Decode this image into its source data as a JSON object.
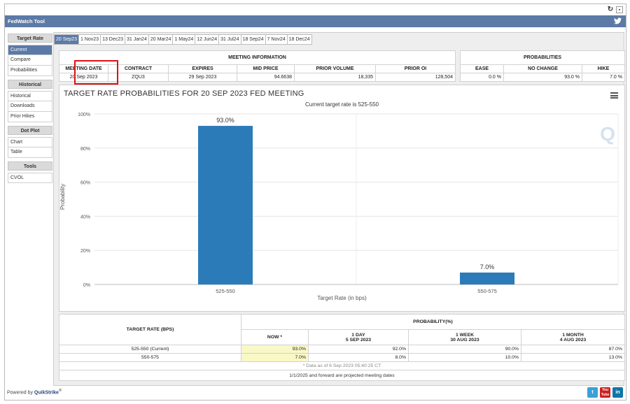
{
  "app": {
    "title": "FedWatch Tool"
  },
  "sidebar": {
    "groups": [
      {
        "label": "Target Rate",
        "items": [
          "Current",
          "Compare",
          "Probabilities"
        ]
      },
      {
        "label": "Historical",
        "items": [
          "Historical",
          "Downloads",
          "Prior Hikes"
        ]
      },
      {
        "label": "Dot Plot",
        "items": [
          "Chart",
          "Table"
        ]
      },
      {
        "label": "Tools",
        "items": [
          "CVOL"
        ]
      }
    ],
    "active": "Current"
  },
  "tabs": [
    "20 Sep23",
    "1 Nov23",
    "13 Dec23",
    "31 Jan24",
    "20 Mar24",
    "1 May24",
    "12 Jun24",
    "31 Jul24",
    "18 Sep24",
    "7 Nov24",
    "18 Dec24"
  ],
  "meeting": {
    "header": "MEETING INFORMATION",
    "columns": [
      "MEETING DATE",
      "CONTRACT",
      "EXPIRES",
      "MID PRICE",
      "PRIOR VOLUME",
      "PRIOR OI"
    ],
    "values": [
      "20 Sep 2023",
      "ZQU3",
      "29 Sep 2023",
      "94.6638",
      "18,335",
      "128,504"
    ]
  },
  "probabilities": {
    "header": "PROBABILITIES",
    "columns": [
      "EASE",
      "NO CHANGE",
      "HIKE"
    ],
    "values": [
      "0.0 %",
      "93.0 %",
      "7.0 %"
    ]
  },
  "chart_data": {
    "type": "bar",
    "title": "TARGET RATE PROBABILITIES FOR 20 SEP 2023 FED MEETING",
    "subtitle": "Current target rate is 525-550",
    "xlabel": "Target Rate (in bps)",
    "ylabel": "Probability",
    "categories": [
      "525-550",
      "550-575"
    ],
    "values": [
      93.0,
      7.0
    ],
    "data_labels": [
      "93.0%",
      "7.0%"
    ],
    "yticks": [
      "0%",
      "20%",
      "40%",
      "60%",
      "80%",
      "100%"
    ],
    "ylim": [
      0,
      100
    ],
    "color": "#2b7bb9",
    "grid": true
  },
  "bottom_table": {
    "col_target": "TARGET RATE (BPS)",
    "col_prob": "PROBABILITY(%)",
    "subcols": [
      {
        "line1": "NOW *",
        "line2": ""
      },
      {
        "line1": "1 DAY",
        "line2": "5 SEP 2023"
      },
      {
        "line1": "1 WEEK",
        "line2": "30 AUG 2023"
      },
      {
        "line1": "1 MONTH",
        "line2": "4 AUG 2023"
      }
    ],
    "rows": [
      {
        "rate": "525-550 (Current)",
        "vals": [
          "93.0%",
          "92.0%",
          "90.0%",
          "87.0%"
        ]
      },
      {
        "rate": "550-575",
        "vals": [
          "7.0%",
          "8.0%",
          "10.0%",
          "13.0%"
        ]
      }
    ],
    "note": "* Data as of 6 Sep 2023 05:40:25 CT",
    "footer_note": "1/1/2025 and forward are projected meeting dates"
  },
  "footer": {
    "powered_by": "Powered by",
    "brand": "QuikStrike"
  },
  "social": [
    "t",
    "You Tube",
    "in"
  ],
  "colors": {
    "header_blue": "#5b7aa6",
    "bar_blue": "#2b7bb9",
    "highlight": "#f9f8c7",
    "red_box": "#dd1111"
  }
}
